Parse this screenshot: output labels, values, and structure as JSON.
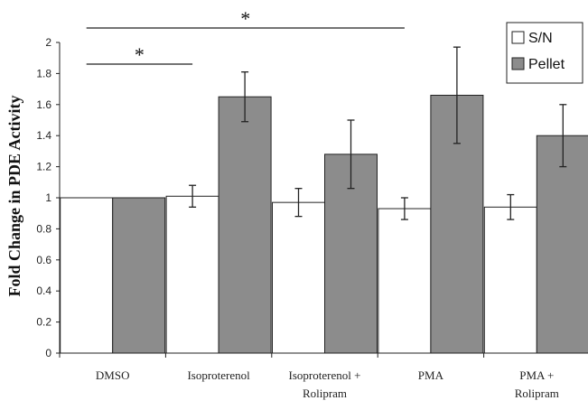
{
  "chart_data": {
    "type": "bar",
    "ylabel": "Fold Change in PDE Activity",
    "ylim": [
      0,
      2
    ],
    "yticks": [
      "0",
      "0.2",
      "0.4",
      "0.6",
      "0.8",
      "1",
      "1.2",
      "1.4",
      "1.6",
      "1.8",
      "2"
    ],
    "categories": [
      [
        "DMSO"
      ],
      [
        "Isoproterenol"
      ],
      [
        "Isoproterenol +",
        "Rolipram"
      ],
      [
        "PMA"
      ],
      [
        "PMA +",
        "Rolipram"
      ]
    ],
    "series": [
      {
        "name": "S/N",
        "color": "#ffffff",
        "values": [
          1.0,
          1.01,
          0.97,
          0.93,
          0.94
        ],
        "errors": [
          0,
          0.07,
          0.09,
          0.07,
          0.08
        ]
      },
      {
        "name": "Pellet",
        "color": "#8c8c8c",
        "values": [
          1.0,
          1.65,
          1.28,
          1.66,
          1.4
        ],
        "errors": [
          0,
          0.16,
          0.22,
          0.31,
          0.2
        ]
      }
    ],
    "legend": "top-right",
    "grid": false,
    "annotations": [
      {
        "text": "*",
        "from": 0,
        "to": 1
      },
      {
        "text": "*",
        "from": 0,
        "to": 3
      }
    ]
  }
}
